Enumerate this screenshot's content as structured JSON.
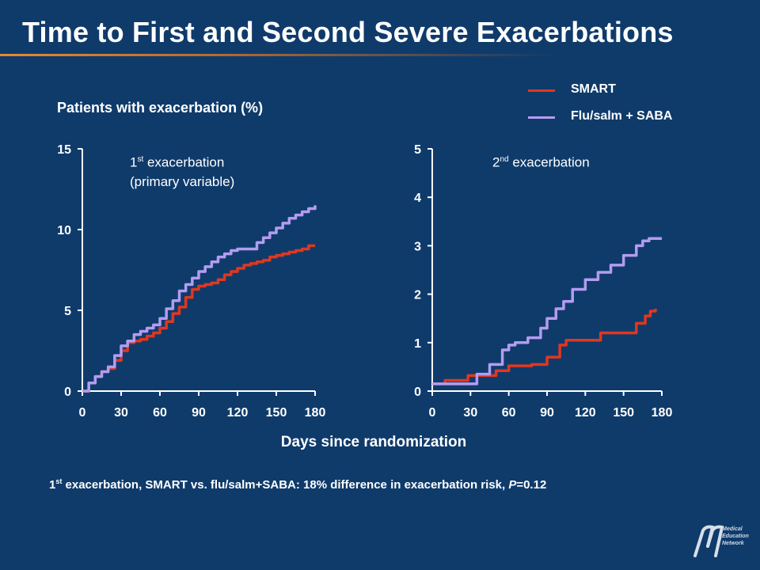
{
  "title": "Time to First and Second Severe Exacerbations",
  "ylabel": "Patients with exacerbation (%)",
  "xlabel": "Days since randomization",
  "legend": [
    {
      "label": "SMART",
      "color": "#e0371f"
    },
    {
      "label": "Flu/salm + SABA",
      "color": "#b49cf0"
    }
  ],
  "footnote": {
    "sup": "st",
    "pre": "1",
    "text": " exacerbation, SMART vs. flu/salm+SABA: 18% difference in exacerbation risk, ",
    "p": "P",
    "tail": "=0.12"
  },
  "logo": {
    "line1": "Medical",
    "line2": "Education",
    "line3": "Network"
  },
  "chart_data": [
    {
      "type": "line",
      "label_num": "1",
      "label_sup": "st",
      "label_rest": " exacerbation",
      "label_line2": "(primary variable)",
      "xlim": [
        0,
        180
      ],
      "ylim": [
        0,
        15
      ],
      "xticks": [
        0,
        30,
        60,
        90,
        120,
        150,
        180
      ],
      "yticks": [
        0,
        5,
        10,
        15
      ],
      "series": [
        {
          "name": "SMART",
          "color": "#e0371f",
          "x": [
            0,
            5,
            10,
            15,
            20,
            25,
            30,
            35,
            40,
            45,
            50,
            55,
            60,
            65,
            70,
            75,
            80,
            85,
            90,
            95,
            100,
            105,
            110,
            115,
            120,
            125,
            130,
            135,
            140,
            145,
            150,
            155,
            160,
            165,
            170,
            175,
            180
          ],
          "y": [
            0,
            0.5,
            0.9,
            1.2,
            1.4,
            1.9,
            2.5,
            3.0,
            3.1,
            3.2,
            3.4,
            3.6,
            3.9,
            4.3,
            4.8,
            5.2,
            5.8,
            6.3,
            6.5,
            6.6,
            6.7,
            6.9,
            7.2,
            7.4,
            7.6,
            7.8,
            7.9,
            8.0,
            8.1,
            8.3,
            8.4,
            8.5,
            8.6,
            8.7,
            8.8,
            9.0,
            9.0
          ]
        },
        {
          "name": "Flu/salm + SABA",
          "color": "#b49cf0",
          "x": [
            0,
            5,
            10,
            15,
            20,
            25,
            30,
            35,
            40,
            45,
            50,
            55,
            60,
            65,
            70,
            75,
            80,
            85,
            90,
            95,
            100,
            105,
            110,
            115,
            120,
            125,
            130,
            135,
            140,
            145,
            150,
            155,
            160,
            165,
            170,
            175,
            180
          ],
          "y": [
            0,
            0.5,
            0.9,
            1.2,
            1.5,
            2.2,
            2.8,
            3.1,
            3.5,
            3.7,
            3.9,
            4.1,
            4.5,
            5.1,
            5.6,
            6.2,
            6.6,
            7.0,
            7.4,
            7.7,
            8.0,
            8.3,
            8.5,
            8.7,
            8.8,
            8.8,
            8.8,
            9.2,
            9.5,
            9.8,
            10.1,
            10.4,
            10.7,
            10.9,
            11.1,
            11.3,
            11.5
          ]
        }
      ]
    },
    {
      "type": "line",
      "label_num": "2",
      "label_sup": "nd",
      "label_rest": " exacerbation",
      "label_line2": "",
      "xlim": [
        0,
        180
      ],
      "ylim": [
        0,
        5
      ],
      "xticks": [
        0,
        30,
        60,
        90,
        120,
        150,
        180
      ],
      "yticks": [
        0,
        1,
        2,
        3,
        4,
        5
      ],
      "series": [
        {
          "name": "SMART",
          "color": "#e0371f",
          "x": [
            0,
            10,
            28,
            50,
            60,
            78,
            90,
            100,
            105,
            120,
            132,
            150,
            160,
            167,
            171,
            175
          ],
          "y": [
            0.15,
            0.22,
            0.32,
            0.42,
            0.52,
            0.55,
            0.7,
            0.95,
            1.05,
            1.05,
            1.2,
            1.2,
            1.4,
            1.55,
            1.65,
            1.7
          ]
        },
        {
          "name": "Flu/salm + SABA",
          "color": "#b49cf0",
          "x": [
            0,
            35,
            45,
            55,
            60,
            65,
            75,
            85,
            90,
            97,
            103,
            110,
            120,
            130,
            140,
            150,
            160,
            165,
            170,
            180
          ],
          "y": [
            0.15,
            0.35,
            0.55,
            0.85,
            0.95,
            1.0,
            1.1,
            1.3,
            1.5,
            1.7,
            1.85,
            2.1,
            2.3,
            2.45,
            2.6,
            2.8,
            3.0,
            3.1,
            3.15,
            3.15
          ]
        }
      ]
    }
  ]
}
